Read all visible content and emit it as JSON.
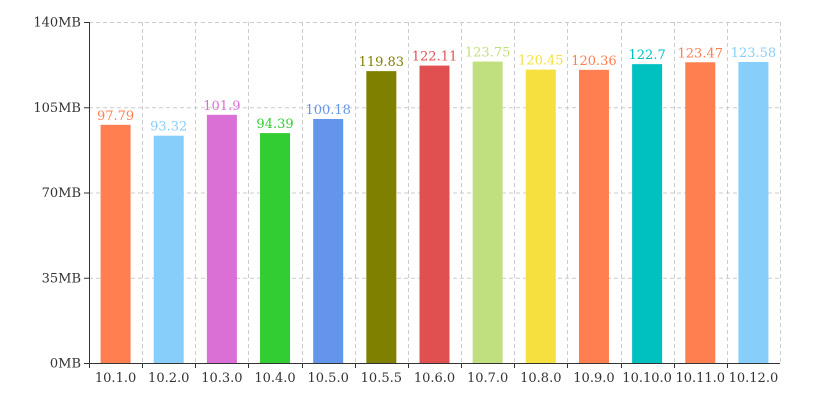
{
  "chart_data": {
    "type": "bar",
    "title": "",
    "xlabel": "",
    "ylabel": "",
    "categories": [
      "10.1.0",
      "10.2.0",
      "10.3.0",
      "10.4.0",
      "10.5.0",
      "10.5.5",
      "10.6.0",
      "10.7.0",
      "10.8.0",
      "10.9.0",
      "10.10.0",
      "10.11.0",
      "10.12.0"
    ],
    "values": [
      97.79,
      93.32,
      101.9,
      94.39,
      100.18,
      119.83,
      122.11,
      123.75,
      120.45,
      120.36,
      122.7,
      123.47,
      123.58
    ],
    "value_labels": [
      "97.79",
      "93.32",
      "101.9",
      "94.39",
      "100.18",
      "119.83",
      "122.11",
      "123.75",
      "120.45",
      "120.36",
      "122.7",
      "123.47",
      "123.58"
    ],
    "colors": [
      "#ff7f50",
      "#87cefa",
      "#da70d6",
      "#32cd32",
      "#6495ed",
      "#808000",
      "#e05050",
      "#c0e080",
      "#f5e040",
      "#ff7f50",
      "#00c0c0",
      "#ff7f50",
      "#87cefa"
    ],
    "ylim": [
      0,
      140
    ],
    "yticks": [
      {
        "value": 0,
        "label": "0MB"
      },
      {
        "value": 35,
        "label": "35MB"
      },
      {
        "value": 70,
        "label": "70MB"
      },
      {
        "value": 105,
        "label": "105MB"
      },
      {
        "value": 140,
        "label": "140MB"
      }
    ],
    "grid": true,
    "legend": "none"
  }
}
